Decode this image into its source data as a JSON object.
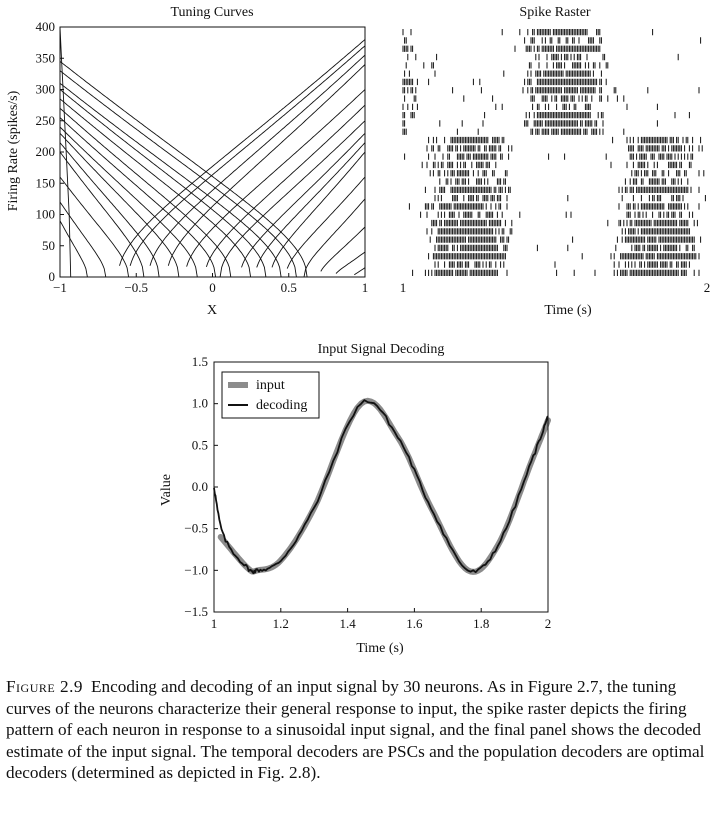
{
  "chart_data": [
    {
      "type": "line",
      "title": "Tuning Curves",
      "xlabel": "X",
      "ylabel": "Firing Rate (spikes/s)",
      "xlim": [
        -1,
        1
      ],
      "ylim": [
        0,
        400
      ],
      "xticks": [
        "−1",
        "−0.5",
        "0",
        "0.5",
        "1"
      ],
      "xtick_values": [
        -1,
        -0.5,
        0,
        0.5,
        1
      ],
      "yticks": [
        "0",
        "50",
        "100",
        "150",
        "200",
        "250",
        "300",
        "350",
        "400"
      ],
      "ytick_values": [
        0,
        50,
        100,
        150,
        200,
        250,
        300,
        350,
        400
      ],
      "series": [
        {
          "dir": 1,
          "x0": -0.62,
          "max": 380
        },
        {
          "dir": 1,
          "x0": -0.55,
          "max": 370
        },
        {
          "dir": 1,
          "x0": -0.42,
          "max": 355
        },
        {
          "dir": 1,
          "x0": -0.3,
          "max": 340
        },
        {
          "dir": 1,
          "x0": -0.18,
          "max": 300
        },
        {
          "dir": 1,
          "x0": -0.05,
          "max": 275
        },
        {
          "dir": 1,
          "x0": 0.05,
          "max": 250
        },
        {
          "dir": 1,
          "x0": 0.18,
          "max": 230
        },
        {
          "dir": 1,
          "x0": 0.28,
          "max": 215
        },
        {
          "dir": 1,
          "x0": 0.38,
          "max": 200
        },
        {
          "dir": 1,
          "x0": 0.48,
          "max": 160
        },
        {
          "dir": 1,
          "x0": 0.6,
          "max": 125
        },
        {
          "dir": 1,
          "x0": 0.7,
          "max": 80
        },
        {
          "dir": 1,
          "x0": 0.8,
          "max": 40
        },
        {
          "dir": 1,
          "x0": 0.92,
          "max": 15
        },
        {
          "dir": -1,
          "x0": 0.62,
          "max": 345
        },
        {
          "dir": -1,
          "x0": 0.55,
          "max": 330
        },
        {
          "dir": -1,
          "x0": 0.45,
          "max": 310
        },
        {
          "dir": -1,
          "x0": 0.35,
          "max": 300
        },
        {
          "dir": -1,
          "x0": 0.25,
          "max": 285
        },
        {
          "dir": -1,
          "x0": 0.12,
          "max": 270
        },
        {
          "dir": -1,
          "x0": 0.02,
          "max": 255
        },
        {
          "dir": -1,
          "x0": -0.1,
          "max": 240
        },
        {
          "dir": -1,
          "x0": -0.22,
          "max": 230
        },
        {
          "dir": -1,
          "x0": -0.35,
          "max": 215
        },
        {
          "dir": -1,
          "x0": -0.45,
          "max": 200
        },
        {
          "dir": -1,
          "x0": -0.55,
          "max": 160
        },
        {
          "dir": -1,
          "x0": -0.7,
          "max": 120
        },
        {
          "dir": -1,
          "x0": -0.82,
          "max": 90
        },
        {
          "dir": -1,
          "x0": -0.93,
          "max": 400
        }
      ]
    },
    {
      "type": "raster",
      "title": "Spike Raster",
      "xlabel": "Time (s)",
      "xlim": [
        1,
        2
      ],
      "xticks": [
        "1",
        "2"
      ],
      "xtick_values": [
        1,
        2
      ],
      "neurons": 30
    },
    {
      "type": "line",
      "title": "Input Signal Decoding",
      "xlabel": "Time (s)",
      "ylabel": "Value",
      "xlim": [
        1,
        2
      ],
      "ylim": [
        -1.5,
        1.5
      ],
      "xticks": [
        "1",
        "1.2",
        "1.4",
        "1.6",
        "1.8",
        "2"
      ],
      "xtick_values": [
        1,
        1.2,
        1.4,
        1.6,
        1.8,
        2
      ],
      "yticks": [
        "−1.5",
        "−1.0",
        "−0.5",
        "0.0",
        "0.5",
        "1.0",
        "1.5"
      ],
      "ytick_values": [
        -1.5,
        -1.0,
        -0.5,
        0.0,
        0.5,
        1.0,
        1.5
      ],
      "legend": "top-left",
      "series": [
        {
          "name": "input",
          "color": "#8c8c8c",
          "x": [
            1.02,
            1.1,
            1.13,
            1.2,
            1.3,
            1.44,
            1.55,
            1.65,
            1.76,
            1.85,
            1.95,
            2.0
          ],
          "y": [
            -0.6,
            -0.97,
            -1.0,
            -0.88,
            -0.25,
            1.0,
            0.6,
            -0.25,
            -1.0,
            -0.7,
            0.3,
            0.8
          ]
        },
        {
          "name": "decoding",
          "color": "#111111",
          "x": [
            1.0,
            1.03,
            1.1,
            1.13,
            1.2,
            1.3,
            1.44,
            1.55,
            1.65,
            1.76,
            1.85,
            1.95,
            2.0
          ],
          "y": [
            0.0,
            -0.6,
            -0.97,
            -1.0,
            -0.88,
            -0.25,
            1.0,
            0.6,
            -0.25,
            -1.0,
            -0.7,
            0.3,
            0.85
          ]
        }
      ]
    }
  ],
  "caption": {
    "label": "Figure 2.9",
    "text": "Encoding and decoding of an input signal by 30 neurons. As in Figure 2.7, the tuning curves of the neurons characterize their general response to input, the spike raster depicts the firing pattern of each neuron in response to a sinusoidal input signal, and the final panel shows the decoded estimate of the input signal. The temporal decoders are PSCs and the population decoders are optimal decoders (determined as depicted in Fig. 2.8)."
  }
}
